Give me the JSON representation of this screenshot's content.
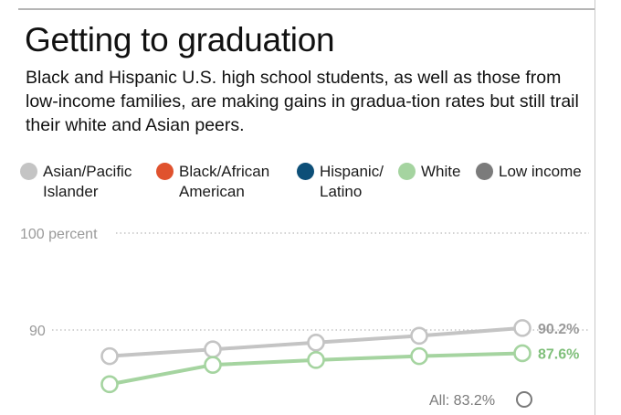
{
  "title": "Getting to graduation",
  "subtitle": "Black and Hispanic U.S. high school students, as well as those from low-income families, are making gains in gradua-tion rates but still trail their white and Asian peers.",
  "legend": [
    {
      "label": "Asian/Pacific\nIslander",
      "color": "#c4c4c4"
    },
    {
      "label": "Black/African\nAmerican",
      "color": "#e0522e"
    },
    {
      "label": "Hispanic/\nLatino",
      "color": "#0d4f78"
    },
    {
      "label": "White",
      "color": "#a5d4a0"
    },
    {
      "label": "Low income",
      "color": "#7b7b7b"
    }
  ],
  "chart_data": {
    "type": "line",
    "ylim": [
      83,
      100
    ],
    "y_ticks": [
      {
        "value": 100,
        "label": "100 percent"
      },
      {
        "value": 90,
        "label": "90"
      }
    ],
    "grid": "dotted horizontal at ticks",
    "series": [
      {
        "name": "Asian/Pacific Islander",
        "color": "#c4c4c4",
        "values": [
          87.3,
          88.0,
          88.7,
          89.4,
          90.2
        ],
        "end_label": "90.2%",
        "end_label_color": "#9a9a9a"
      },
      {
        "name": "White",
        "color": "#a5d4a0",
        "values": [
          84.4,
          86.4,
          86.9,
          87.3,
          87.6
        ],
        "end_label": "87.6%",
        "end_label_color": "#7fbf7a"
      }
    ],
    "annotations": [
      {
        "text": "All: 83.2%",
        "value": 83.2
      }
    ]
  }
}
